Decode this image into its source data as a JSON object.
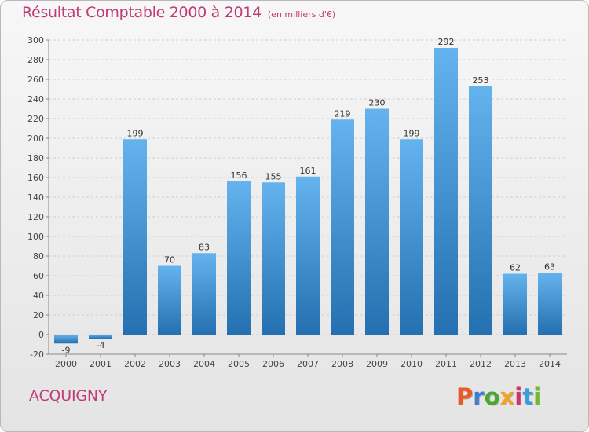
{
  "header": {
    "title": "Résultat Comptable 2000 à 2014",
    "unit": "(en milliers d'€)"
  },
  "footer": {
    "place": "ACQUIGNY",
    "logo": "Proxiti"
  },
  "colors": {
    "title": "#c03a74",
    "bar_light": "#64b3ee",
    "bar_dark": "#2470b0",
    "logo_letters": [
      "#e85a2a",
      "#3a7fd0",
      "#4aa832",
      "#f0a22a",
      "#d0356a",
      "#3a9fd8",
      "#6fbb2d"
    ]
  },
  "chart_data": {
    "type": "bar",
    "title": "Résultat Comptable 2000 à 2014",
    "categories": [
      "2000",
      "2001",
      "2002",
      "2003",
      "2004",
      "2005",
      "2006",
      "2007",
      "2008",
      "2009",
      "2010",
      "2011",
      "2012",
      "2013",
      "2014"
    ],
    "values": [
      -9,
      -4,
      199,
      70,
      83,
      156,
      155,
      161,
      219,
      230,
      199,
      292,
      253,
      62,
      63
    ],
    "ylim": [
      -20,
      300
    ],
    "yticks": [
      -20,
      0,
      20,
      40,
      60,
      80,
      100,
      120,
      140,
      160,
      180,
      200,
      220,
      240,
      260,
      280,
      300
    ],
    "grid": true,
    "legend": "none"
  }
}
